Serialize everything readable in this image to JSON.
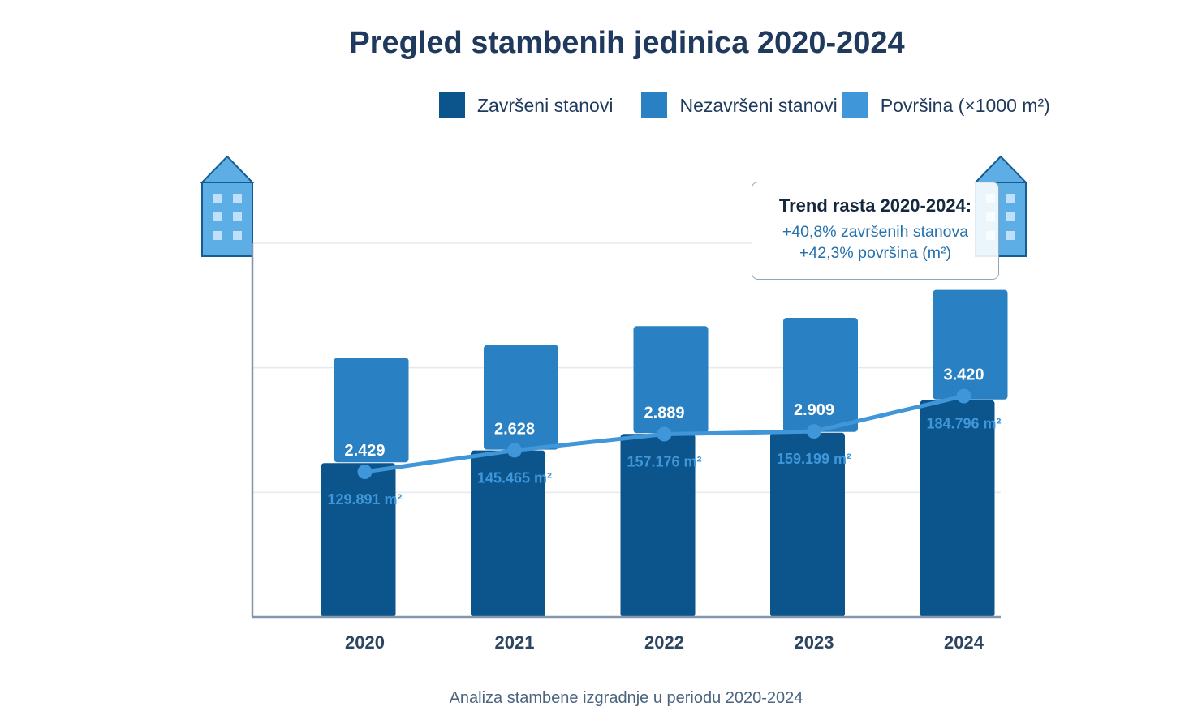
{
  "title": "Pregled stambenih jedinica 2020-2024",
  "legend": [
    {
      "label": "Završeni stanovi",
      "color": "#0b558c"
    },
    {
      "label": "Nezavršeni stanovi",
      "color": "#2980c2"
    },
    {
      "label": "Površina (×1000 m²)",
      "color": "#3f96d8"
    }
  ],
  "trend_box": {
    "title": "Trend rasta 2020-2024:",
    "lines": [
      "+40,8% završenih stanova",
      "+42,3% površina (m²)"
    ]
  },
  "caption": "Analiza stambene izgradnje u periodu 2020-2024",
  "icons": {
    "left": "building-icon",
    "right": "building-icon"
  },
  "chart_data": {
    "type": "bar",
    "title": "Pregled stambenih jedinica 2020-2024",
    "categories": [
      "2020",
      "2021",
      "2022",
      "2023",
      "2024"
    ],
    "series": [
      {
        "name": "Završeni stanovi",
        "kind": "bar",
        "color": "#0b558c",
        "values": [
          2429,
          2628,
          2889,
          2909,
          3420
        ],
        "labels": [
          "2.429",
          "2.628",
          "2.889",
          "2.909",
          "3.420"
        ]
      },
      {
        "name": "Nezavršeni stanovi",
        "kind": "bar-stacked",
        "color": "#2980c2",
        "values": [
          1650,
          1650,
          1690,
          1800,
          1730
        ],
        "estimated": true
      },
      {
        "name": "Površina (×1000 m²)",
        "kind": "line",
        "color": "#3f96d8",
        "values": [
          129.891,
          145.465,
          157.176,
          159.199,
          184.796
        ],
        "labels": [
          "129.891 m²",
          "145.465 m²",
          "157.176 m²",
          "159.199 m²",
          "184.796 m²"
        ]
      }
    ],
    "xlabel": "",
    "ylabel": "",
    "ylim": [
      0,
      5900
    ],
    "grid": true,
    "legend_position": "top-right"
  }
}
